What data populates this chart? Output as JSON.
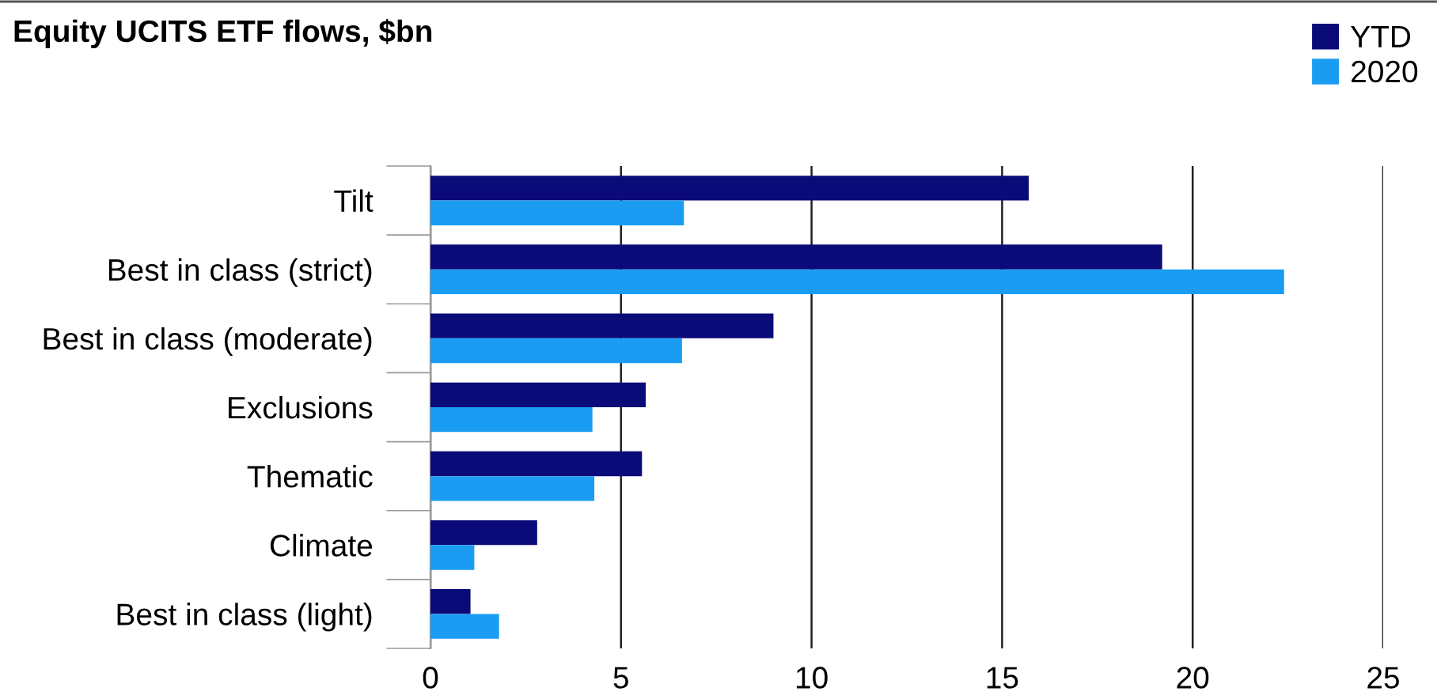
{
  "chart_data": {
    "type": "bar",
    "orientation": "horizontal",
    "title": "Equity UCITS ETF flows, $bn",
    "categories": [
      "Tilt",
      "Best in class (strict)",
      "Best in class (moderate)",
      "Exclusions",
      "Thematic",
      "Climate",
      "Best in class (light)"
    ],
    "series": [
      {
        "name": "YTD",
        "color": "#0a0a78",
        "values": [
          15.7,
          19.2,
          9.0,
          5.65,
          5.55,
          2.8,
          1.05
        ]
      },
      {
        "name": "2020",
        "color": "#1a9cf2",
        "values": [
          6.65,
          22.4,
          6.6,
          4.25,
          4.3,
          1.15,
          1.8
        ]
      }
    ],
    "xlim": [
      0,
      25
    ],
    "xticks": [
      0,
      5,
      10,
      15,
      20,
      25
    ],
    "grid": "x",
    "legend": "top right"
  }
}
